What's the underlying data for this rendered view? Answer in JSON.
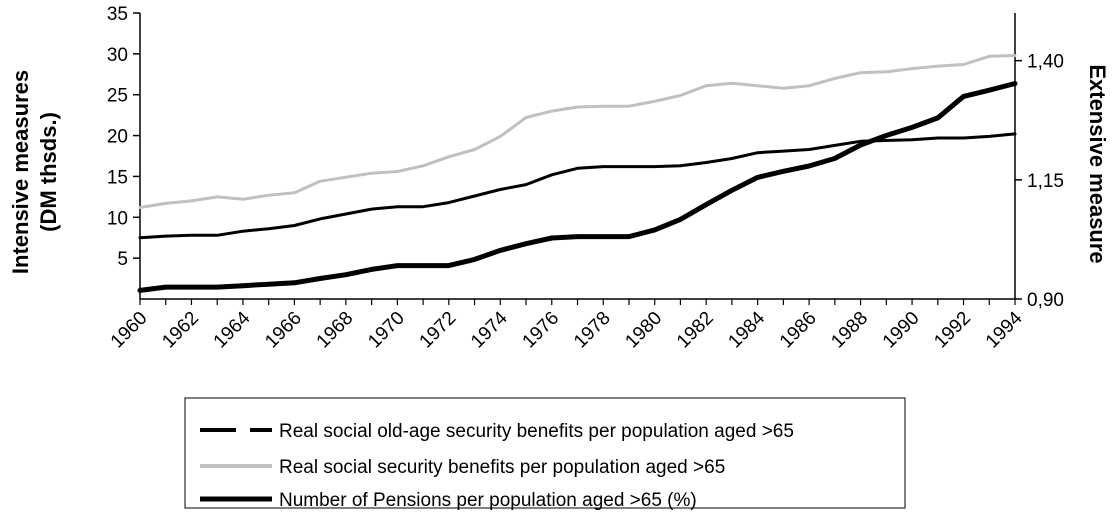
{
  "chart_data": {
    "type": "line",
    "x": [
      1960,
      1961,
      1962,
      1963,
      1964,
      1965,
      1966,
      1967,
      1968,
      1969,
      1970,
      1971,
      1972,
      1973,
      1974,
      1975,
      1976,
      1977,
      1978,
      1979,
      1980,
      1981,
      1982,
      1983,
      1984,
      1985,
      1986,
      1987,
      1988,
      1989,
      1990,
      1991,
      1992,
      1993,
      1994
    ],
    "x_tick_labels": [
      "1960",
      "1962",
      "1964",
      "1966",
      "1968",
      "1970",
      "1972",
      "1974",
      "1976",
      "1978",
      "1980",
      "1982",
      "1984",
      "1986",
      "1988",
      "1990",
      "1992",
      "1994"
    ],
    "y_left": {
      "label_lines": [
        "Intensive measures",
        "(DM thsds.)"
      ],
      "range": [
        0,
        35
      ],
      "ticks": [
        5,
        10,
        15,
        20,
        25,
        30,
        35
      ],
      "tick_labels": [
        "5",
        "10",
        "15",
        "20",
        "25",
        "30",
        "35"
      ]
    },
    "y_right": {
      "label": "Extensive measure",
      "range": [
        0.9,
        1.5
      ],
      "ticks": [
        0.9,
        1.15,
        1.4
      ],
      "tick_labels": [
        "0,90",
        "1,15",
        "1,40"
      ]
    },
    "series": [
      {
        "name": "Real social old-age security benefits per population aged >65",
        "axis": "left",
        "color": "#000000",
        "style": "medium",
        "legend_style": "dashed",
        "values": [
          7.5,
          7.7,
          7.8,
          7.8,
          8.3,
          8.6,
          9.0,
          9.8,
          10.4,
          11.0,
          11.3,
          11.3,
          11.8,
          12.6,
          13.4,
          14.0,
          15.2,
          16.0,
          16.2,
          16.2,
          16.2,
          16.3,
          16.7,
          17.2,
          17.9,
          18.1,
          18.3,
          18.8,
          19.3,
          19.4,
          19.5,
          19.7,
          19.7,
          19.9,
          20.2
        ]
      },
      {
        "name": "Real social security benefits per population aged >65",
        "axis": "left",
        "color": "#c0c0c0",
        "style": "medium",
        "legend_style": "solid",
        "values": [
          11.2,
          11.7,
          12.0,
          12.5,
          12.2,
          12.7,
          13.0,
          14.4,
          14.9,
          15.4,
          15.6,
          16.3,
          17.4,
          18.3,
          19.9,
          22.2,
          23.0,
          23.5,
          23.6,
          23.6,
          24.2,
          24.9,
          26.1,
          26.4,
          26.1,
          25.8,
          26.1,
          27.0,
          27.7,
          27.8,
          28.2,
          28.5,
          28.7,
          29.7,
          29.8
        ]
      },
      {
        "name": "Number of Pensions per population aged >65 (%)",
        "axis": "right",
        "color": "#000000",
        "style": "thick",
        "legend_style": "solid-thick",
        "values": [
          0.918,
          0.925,
          0.925,
          0.925,
          0.928,
          0.931,
          0.934,
          0.943,
          0.951,
          0.962,
          0.97,
          0.97,
          0.97,
          0.983,
          1.002,
          1.016,
          1.028,
          1.031,
          1.031,
          1.031,
          1.045,
          1.067,
          1.098,
          1.128,
          1.155,
          1.168,
          1.179,
          1.195,
          1.223,
          1.243,
          1.26,
          1.28,
          1.325,
          1.338,
          1.352
        ]
      }
    ],
    "grid": false,
    "legend_position": "bottom"
  }
}
